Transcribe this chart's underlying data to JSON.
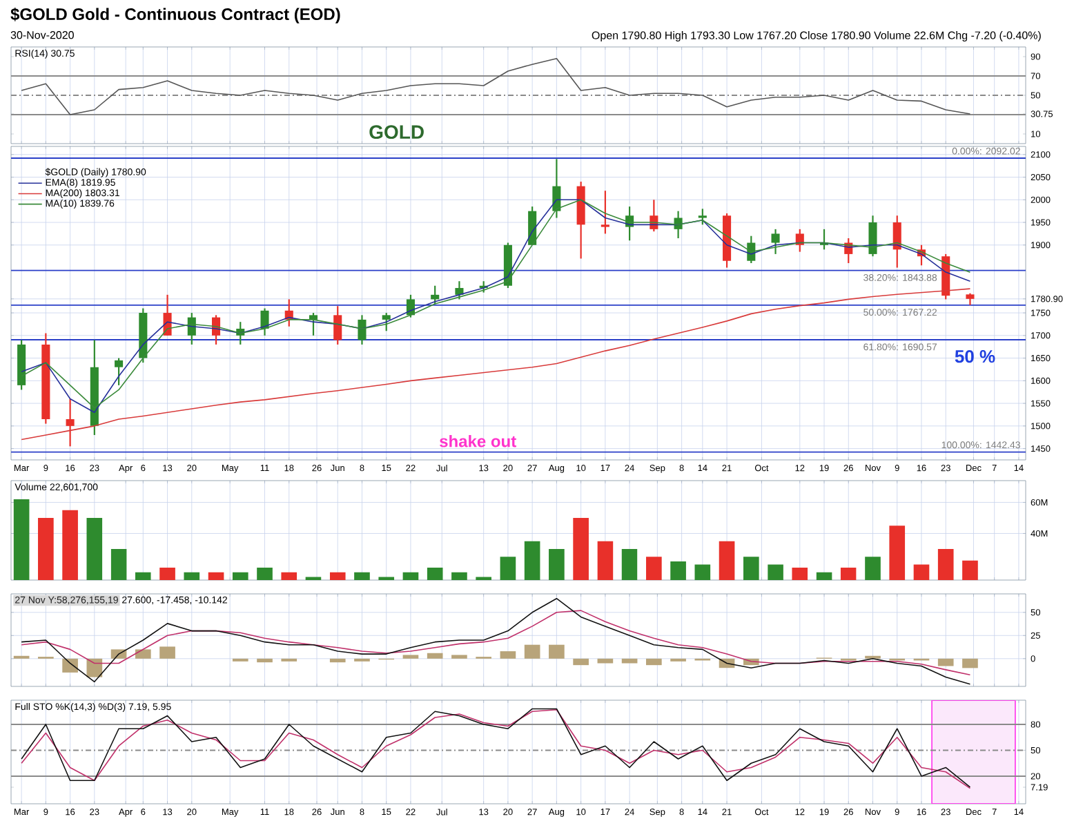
{
  "chart_data": [
    {
      "type": "other",
      "title": "$GOLD Gold - Continuous Contract (EOD)",
      "subtitle": "30-Nov-2020",
      "annotations": [
        "Open 1790.80  High 1793.30  Low 1767.20  Close 1780.90  Volume 22.6M  Chg -7.20 (-0.40%)"
      ]
    },
    {
      "type": "line",
      "title": "RSI(14) 30.75",
      "annotations": [
        "GOLD"
      ],
      "grid": "x",
      "tick_labels": "y",
      "xlim": [
        "2020-02-28",
        "2020-12-16"
      ],
      "ylim": [
        0,
        100
      ],
      "yticks": [
        10,
        {
          "value": 30.75,
          "label": "30.75"
        },
        50,
        70,
        90
      ],
      "ref_lines": [
        {
          "axis": "y",
          "value": 70,
          "color": "#8a8a8a"
        },
        {
          "axis": "y",
          "value": 50,
          "color": "#8a8a8a",
          "line_style": "dashed"
        },
        {
          "axis": "y",
          "value": 30,
          "color": "#8a8a8a"
        }
      ],
      "x": [
        "2020-03-02",
        "2020-03-09",
        "2020-03-16",
        "2020-03-23",
        "2020-03-30",
        "2020-04-06",
        "2020-04-13",
        "2020-04-20",
        "2020-04-27",
        "2020-05-04",
        "2020-05-11",
        "2020-05-18",
        "2020-05-25",
        "2020-06-01",
        "2020-06-08",
        "2020-06-15",
        "2020-06-22",
        "2020-06-29",
        "2020-07-06",
        "2020-07-13",
        "2020-07-20",
        "2020-07-27",
        "2020-08-03",
        "2020-08-10",
        "2020-08-17",
        "2020-08-24",
        "2020-08-31",
        "2020-09-07",
        "2020-09-14",
        "2020-09-21",
        "2020-09-28",
        "2020-10-05",
        "2020-10-12",
        "2020-10-19",
        "2020-10-26",
        "2020-11-02",
        "2020-11-09",
        "2020-11-16",
        "2020-11-23",
        "2020-11-30"
      ],
      "series": [
        {
          "color": "#555555",
          "values": [
            55,
            62,
            30,
            35,
            56,
            58,
            65,
            55,
            52,
            50,
            55,
            52,
            50,
            45,
            52,
            55,
            60,
            62,
            62,
            60,
            75,
            82,
            88,
            55,
            58,
            50,
            52,
            52,
            50,
            38,
            45,
            48,
            48,
            50,
            45,
            55,
            45,
            44,
            35,
            30.75
          ]
        }
      ]
    },
    {
      "type": "candlestick",
      "legend": "top left",
      "legend_title": "$GOLD (Daily) 1780.90",
      "grid": true,
      "xlim": [
        "2020-02-28",
        "2020-12-16"
      ],
      "ylim": [
        1425,
        2118
      ],
      "yticks": [
        1450,
        1500,
        1550,
        1600,
        1650,
        1700,
        1750,
        {
          "value": 1780.9,
          "label": "1780.90"
        },
        1900,
        1950,
        2000,
        2050,
        2100
      ],
      "xticks": [
        {
          "value": "2020-03-02",
          "label": "Mar"
        },
        {
          "value": "2020-03-09",
          "label": "9"
        },
        {
          "value": "2020-03-16",
          "label": "16"
        },
        {
          "value": "2020-03-23",
          "label": "23"
        },
        {
          "value": "2020-04-01",
          "label": "Apr"
        },
        {
          "value": "2020-04-06",
          "label": "6"
        },
        {
          "value": "2020-04-13",
          "label": "13"
        },
        {
          "value": "2020-04-20",
          "label": "20"
        },
        {
          "value": "2020-05-01",
          "label": "May"
        },
        {
          "value": "2020-05-11",
          "label": "11"
        },
        {
          "value": "2020-05-18",
          "label": "18"
        },
        {
          "value": "2020-05-26",
          "label": "26"
        },
        {
          "value": "2020-06-01",
          "label": "Jun"
        },
        {
          "value": "2020-06-08",
          "label": "8"
        },
        {
          "value": "2020-06-15",
          "label": "15"
        },
        {
          "value": "2020-06-22",
          "label": "22"
        },
        {
          "value": "2020-07-01",
          "label": "Jul"
        },
        {
          "value": "2020-07-13",
          "label": "13"
        },
        {
          "value": "2020-07-20",
          "label": "20"
        },
        {
          "value": "2020-07-27",
          "label": "27"
        },
        {
          "value": "2020-08-03",
          "label": "Aug"
        },
        {
          "value": "2020-08-10",
          "label": "10"
        },
        {
          "value": "2020-08-17",
          "label": "17"
        },
        {
          "value": "2020-08-24",
          "label": "24"
        },
        {
          "value": "2020-09-01",
          "label": "Sep"
        },
        {
          "value": "2020-09-08",
          "label": "8"
        },
        {
          "value": "2020-09-14",
          "label": "14"
        },
        {
          "value": "2020-09-21",
          "label": "21"
        },
        {
          "value": "2020-10-01",
          "label": "Oct"
        },
        {
          "value": "2020-10-12",
          "label": "12"
        },
        {
          "value": "2020-10-19",
          "label": "19"
        },
        {
          "value": "2020-10-26",
          "label": "26"
        },
        {
          "value": "2020-11-02",
          "label": "Nov"
        },
        {
          "value": "2020-11-09",
          "label": "9"
        },
        {
          "value": "2020-11-16",
          "label": "16"
        },
        {
          "value": "2020-11-23",
          "label": "23"
        },
        {
          "value": "2020-12-01",
          "label": "Dec"
        },
        {
          "value": "2020-12-07",
          "label": "7"
        },
        {
          "value": "2020-12-14",
          "label": "14"
        }
      ],
      "ref_lines": [
        {
          "axis": "y",
          "value": 2092.02,
          "label": "0.00%: 2092.02",
          "color": "#2a3fc8"
        },
        {
          "axis": "y",
          "value": 1843.88,
          "label": "38.20%: 1843.88",
          "color": "#2a3fc8"
        },
        {
          "axis": "y",
          "value": 1767.22,
          "label": "50.00%: 1767.22",
          "color": "#2a3fc8"
        },
        {
          "axis": "y",
          "value": 1690.57,
          "label": "61.80%: 1690.57",
          "color": "#2a3fc8"
        },
        {
          "axis": "y",
          "value": 1442.43,
          "label": "100.00%: 1442.43",
          "color": "#2a3fc8"
        }
      ],
      "annotations": [
        "shake out",
        "50 %"
      ],
      "x": [
        "2020-03-02",
        "2020-03-09",
        "2020-03-16",
        "2020-03-23",
        "2020-03-30",
        "2020-04-06",
        "2020-04-13",
        "2020-04-20",
        "2020-04-27",
        "2020-05-04",
        "2020-05-11",
        "2020-05-18",
        "2020-05-25",
        "2020-06-01",
        "2020-06-08",
        "2020-06-15",
        "2020-06-22",
        "2020-06-29",
        "2020-07-06",
        "2020-07-13",
        "2020-07-20",
        "2020-07-27",
        "2020-08-03",
        "2020-08-10",
        "2020-08-17",
        "2020-08-24",
        "2020-08-31",
        "2020-09-07",
        "2020-09-14",
        "2020-09-21",
        "2020-09-28",
        "2020-10-05",
        "2020-10-12",
        "2020-10-19",
        "2020-10-26",
        "2020-11-02",
        "2020-11-09",
        "2020-11-16",
        "2020-11-23",
        "2020-11-30"
      ],
      "ohlc": [
        [
          1590,
          1690,
          1580,
          1680
        ],
        [
          1680,
          1705,
          1505,
          1515
        ],
        [
          1515,
          1560,
          1455,
          1500
        ],
        [
          1500,
          1690,
          1480,
          1630
        ],
        [
          1630,
          1650,
          1590,
          1645
        ],
        [
          1650,
          1760,
          1640,
          1750
        ],
        [
          1750,
          1790,
          1700,
          1700
        ],
        [
          1700,
          1750,
          1680,
          1740
        ],
        [
          1740,
          1745,
          1680,
          1700
        ],
        [
          1700,
          1730,
          1680,
          1715
        ],
        [
          1715,
          1760,
          1700,
          1755
        ],
        [
          1755,
          1780,
          1720,
          1735
        ],
        [
          1735,
          1750,
          1700,
          1745
        ],
        [
          1745,
          1765,
          1680,
          1690
        ],
        [
          1690,
          1745,
          1680,
          1735
        ],
        [
          1735,
          1750,
          1710,
          1745
        ],
        [
          1745,
          1790,
          1740,
          1780
        ],
        [
          1780,
          1810,
          1770,
          1790
        ],
        [
          1790,
          1820,
          1780,
          1805
        ],
        [
          1805,
          1820,
          1795,
          1810
        ],
        [
          1810,
          1905,
          1805,
          1900
        ],
        [
          1900,
          1985,
          1900,
          1975
        ],
        [
          1975,
          2090,
          1960,
          2030
        ],
        [
          2030,
          2040,
          1870,
          1945
        ],
        [
          1945,
          2020,
          1925,
          1940
        ],
        [
          1940,
          1985,
          1910,
          1965
        ],
        [
          1965,
          2000,
          1930,
          1935
        ],
        [
          1935,
          1975,
          1915,
          1960
        ],
        [
          1960,
          1980,
          1945,
          1965
        ],
        [
          1965,
          1970,
          1850,
          1865
        ],
        [
          1865,
          1920,
          1860,
          1905
        ],
        [
          1905,
          1935,
          1880,
          1925
        ],
        [
          1925,
          1935,
          1885,
          1900
        ],
        [
          1900,
          1935,
          1890,
          1905
        ],
        [
          1905,
          1915,
          1860,
          1880
        ],
        [
          1880,
          1965,
          1875,
          1950
        ],
        [
          1950,
          1965,
          1850,
          1890
        ],
        [
          1890,
          1900,
          1855,
          1875
        ],
        [
          1875,
          1880,
          1780,
          1788
        ],
        [
          1790.8,
          1793.3,
          1767.2,
          1780.9
        ]
      ],
      "series": [
        {
          "type": "line",
          "name": "EMA(8) 1819.95",
          "color": "#26309a",
          "values": [
            1620,
            1640,
            1560,
            1530,
            1610,
            1680,
            1730,
            1720,
            1715,
            1705,
            1720,
            1740,
            1730,
            1725,
            1715,
            1730,
            1755,
            1775,
            1790,
            1805,
            1830,
            1930,
            2000,
            2000,
            1960,
            1945,
            1945,
            1945,
            1955,
            1900,
            1880,
            1900,
            1905,
            1905,
            1895,
            1900,
            1900,
            1880,
            1840,
            1819.95
          ]
        },
        {
          "type": "line",
          "name": "MA(200) 1803.31",
          "color": "#d83a3a",
          "values": [
            1470,
            1480,
            1490,
            1500,
            1515,
            1522,
            1530,
            1538,
            1546,
            1553,
            1558,
            1565,
            1572,
            1578,
            1585,
            1592,
            1600,
            1606,
            1612,
            1618,
            1624,
            1630,
            1638,
            1652,
            1666,
            1678,
            1692,
            1705,
            1718,
            1732,
            1748,
            1758,
            1766,
            1772,
            1780,
            1786,
            1791,
            1795,
            1799,
            1803.31
          ]
        },
        {
          "type": "line",
          "name": "MA(10) 1839.76",
          "color": "#3a8a3a",
          "values": [
            1610,
            1640,
            1590,
            1540,
            1580,
            1650,
            1715,
            1725,
            1720,
            1705,
            1715,
            1735,
            1735,
            1725,
            1715,
            1725,
            1745,
            1770,
            1785,
            1800,
            1820,
            1900,
            1980,
            2000,
            1970,
            1950,
            1950,
            1945,
            1955,
            1920,
            1885,
            1895,
            1905,
            1905,
            1900,
            1895,
            1905,
            1885,
            1860,
            1839.76
          ]
        }
      ]
    },
    {
      "type": "bar",
      "title": "Volume 22,601,700",
      "grid": true,
      "tick_labels": "y",
      "xlim": [
        "2020-02-28",
        "2020-12-16"
      ],
      "ylim": [
        10,
        74
      ],
      "yticks": [
        {
          "value": 40,
          "label": "40M"
        },
        {
          "value": 60,
          "label": "60M"
        }
      ],
      "x": [
        "2020-03-02",
        "2020-03-09",
        "2020-03-16",
        "2020-03-23",
        "2020-03-30",
        "2020-04-06",
        "2020-04-13",
        "2020-04-20",
        "2020-04-27",
        "2020-05-04",
        "2020-05-11",
        "2020-05-18",
        "2020-05-25",
        "2020-06-01",
        "2020-06-08",
        "2020-06-15",
        "2020-06-22",
        "2020-06-29",
        "2020-07-06",
        "2020-07-13",
        "2020-07-20",
        "2020-07-27",
        "2020-08-03",
        "2020-08-10",
        "2020-08-17",
        "2020-08-24",
        "2020-08-31",
        "2020-09-07",
        "2020-09-14",
        "2020-09-21",
        "2020-09-28",
        "2020-10-05",
        "2020-10-12",
        "2020-10-19",
        "2020-10-26",
        "2020-11-02",
        "2020-11-09",
        "2020-11-16",
        "2020-11-23",
        "2020-11-30"
      ],
      "values": [
        62,
        50,
        55,
        50,
        30,
        15,
        18,
        15,
        15,
        15,
        18,
        15,
        12,
        15,
        15,
        12,
        15,
        18,
        15,
        12,
        25,
        35,
        30,
        50,
        35,
        30,
        25,
        22,
        20,
        35,
        25,
        20,
        18,
        15,
        18,
        25,
        45,
        20,
        30,
        22.6
      ],
      "colors": [
        "#2e8b2e",
        "#e8302a",
        "#e8302a",
        "#2e8b2e",
        "#2e8b2e",
        "#2e8b2e",
        "#e8302a",
        "#2e8b2e",
        "#e8302a",
        "#2e8b2e",
        "#2e8b2e",
        "#e8302a",
        "#2e8b2e",
        "#e8302a",
        "#2e8b2e",
        "#2e8b2e",
        "#2e8b2e",
        "#2e8b2e",
        "#2e8b2e",
        "#2e8b2e",
        "#2e8b2e",
        "#2e8b2e",
        "#2e8b2e",
        "#e8302a",
        "#e8302a",
        "#2e8b2e",
        "#e8302a",
        "#2e8b2e",
        "#2e8b2e",
        "#e8302a",
        "#2e8b2e",
        "#2e8b2e",
        "#e8302a",
        "#2e8b2e",
        "#e8302a",
        "#2e8b2e",
        "#e8302a",
        "#e8302a",
        "#e8302a",
        "#e8302a"
      ]
    },
    {
      "type": "line",
      "title": "27.600, -17.458, -10.142",
      "annotations": [
        "27 Nov Y:58,276,155,19"
      ],
      "grid": true,
      "tick_labels": "y",
      "xlim": [
        "2020-02-28",
        "2020-12-16"
      ],
      "ylim": [
        -30,
        70
      ],
      "yticks": [
        0,
        25,
        50
      ],
      "x": [
        "2020-03-02",
        "2020-03-09",
        "2020-03-16",
        "2020-03-23",
        "2020-03-30",
        "2020-04-06",
        "2020-04-13",
        "2020-04-20",
        "2020-04-27",
        "2020-05-04",
        "2020-05-11",
        "2020-05-18",
        "2020-05-25",
        "2020-06-01",
        "2020-06-08",
        "2020-06-15",
        "2020-06-22",
        "2020-06-29",
        "2020-07-06",
        "2020-07-13",
        "2020-07-20",
        "2020-07-27",
        "2020-08-03",
        "2020-08-10",
        "2020-08-17",
        "2020-08-24",
        "2020-08-31",
        "2020-09-07",
        "2020-09-14",
        "2020-09-21",
        "2020-09-28",
        "2020-10-05",
        "2020-10-12",
        "2020-10-19",
        "2020-10-26",
        "2020-11-02",
        "2020-11-09",
        "2020-11-16",
        "2020-11-23",
        "2020-11-30"
      ],
      "series": [
        {
          "type": "bar",
          "color": "#b8a47a",
          "values": [
            3,
            2,
            -15,
            -20,
            10,
            10,
            13,
            0,
            0,
            -3,
            -4,
            -3,
            0,
            -4,
            -3,
            -1,
            4,
            6,
            4,
            2,
            8,
            15,
            15,
            -7,
            -5,
            -5,
            -7,
            -3,
            -2,
            -10,
            -7,
            0,
            0,
            1,
            -2,
            3,
            -2,
            -2,
            -8,
            -10.142
          ]
        },
        {
          "type": "line",
          "color": "#c0306a",
          "values": [
            15,
            18,
            10,
            -5,
            -5,
            10,
            25,
            30,
            30,
            28,
            22,
            18,
            15,
            12,
            8,
            6,
            8,
            12,
            16,
            18,
            22,
            35,
            50,
            52,
            40,
            30,
            22,
            15,
            12,
            5,
            -3,
            -5,
            -5,
            -3,
            -3,
            -3,
            -3,
            -6,
            -12,
            -17.458
          ]
        },
        {
          "type": "line",
          "color": "#111111",
          "values": [
            18,
            20,
            -5,
            -25,
            5,
            20,
            38,
            30,
            30,
            25,
            18,
            15,
            15,
            8,
            5,
            5,
            12,
            18,
            20,
            20,
            30,
            50,
            65,
            45,
            35,
            25,
            15,
            12,
            10,
            -5,
            -10,
            -5,
            -5,
            -2,
            -5,
            0,
            -5,
            -8,
            -20,
            -27.6
          ]
        }
      ]
    },
    {
      "type": "line",
      "title": "Full STO %K(14,3) %D(3) 7.19, 5.95",
      "grid": "x",
      "xlim": [
        "2020-02-28",
        "2020-12-16"
      ],
      "ylim": [
        -12,
        108
      ],
      "yticks": [
        {
          "value": 7.19,
          "label": "7.19"
        },
        20,
        50,
        80
      ],
      "xticks": [
        {
          "value": "2020-03-02",
          "label": "Mar"
        },
        {
          "value": "2020-03-09",
          "label": "9"
        },
        {
          "value": "2020-03-16",
          "label": "16"
        },
        {
          "value": "2020-03-23",
          "label": "23"
        },
        {
          "value": "2020-04-01",
          "label": "Apr"
        },
        {
          "value": "2020-04-06",
          "label": "6"
        },
        {
          "value": "2020-04-13",
          "label": "13"
        },
        {
          "value": "2020-04-20",
          "label": "20"
        },
        {
          "value": "2020-05-01",
          "label": "May"
        },
        {
          "value": "2020-05-11",
          "label": "11"
        },
        {
          "value": "2020-05-18",
          "label": "18"
        },
        {
          "value": "2020-05-26",
          "label": "26"
        },
        {
          "value": "2020-06-01",
          "label": "Jun"
        },
        {
          "value": "2020-06-08",
          "label": "8"
        },
        {
          "value": "2020-06-15",
          "label": "15"
        },
        {
          "value": "2020-06-22",
          "label": "22"
        },
        {
          "value": "2020-07-01",
          "label": "Jul"
        },
        {
          "value": "2020-07-13",
          "label": "13"
        },
        {
          "value": "2020-07-20",
          "label": "20"
        },
        {
          "value": "2020-07-27",
          "label": "27"
        },
        {
          "value": "2020-08-03",
          "label": "Aug"
        },
        {
          "value": "2020-08-10",
          "label": "10"
        },
        {
          "value": "2020-08-17",
          "label": "17"
        },
        {
          "value": "2020-08-24",
          "label": "24"
        },
        {
          "value": "2020-09-01",
          "label": "Sep"
        },
        {
          "value": "2020-09-08",
          "label": "8"
        },
        {
          "value": "2020-09-14",
          "label": "14"
        },
        {
          "value": "2020-09-21",
          "label": "21"
        },
        {
          "value": "2020-10-01",
          "label": "Oct"
        },
        {
          "value": "2020-10-12",
          "label": "12"
        },
        {
          "value": "2020-10-19",
          "label": "19"
        },
        {
          "value": "2020-10-26",
          "label": "26"
        },
        {
          "value": "2020-11-02",
          "label": "Nov"
        },
        {
          "value": "2020-11-09",
          "label": "9"
        },
        {
          "value": "2020-11-16",
          "label": "16"
        },
        {
          "value": "2020-11-23",
          "label": "23"
        },
        {
          "value": "2020-12-01",
          "label": "Dec"
        },
        {
          "value": "2020-12-07",
          "label": "7"
        },
        {
          "value": "2020-12-14",
          "label": "14"
        }
      ],
      "ref_lines": [
        {
          "axis": "y",
          "value": 80,
          "color": "#8a8a8a"
        },
        {
          "axis": "y",
          "value": 50,
          "color": "#8a8a8a",
          "line_style": "dashed"
        },
        {
          "axis": "y",
          "value": 20,
          "color": "#8a8a8a"
        }
      ],
      "bands": [
        {
          "axis": "x",
          "from": "2020-11-19",
          "to": "2020-12-13",
          "color": "#fbe8fb"
        }
      ],
      "x": [
        "2020-03-02",
        "2020-03-09",
        "2020-03-16",
        "2020-03-23",
        "2020-03-30",
        "2020-04-06",
        "2020-04-13",
        "2020-04-20",
        "2020-04-27",
        "2020-05-04",
        "2020-05-11",
        "2020-05-18",
        "2020-05-25",
        "2020-06-01",
        "2020-06-08",
        "2020-06-15",
        "2020-06-22",
        "2020-06-29",
        "2020-07-06",
        "2020-07-13",
        "2020-07-20",
        "2020-07-27",
        "2020-08-03",
        "2020-08-10",
        "2020-08-17",
        "2020-08-24",
        "2020-08-31",
        "2020-09-07",
        "2020-09-14",
        "2020-09-21",
        "2020-09-28",
        "2020-10-05",
        "2020-10-12",
        "2020-10-19",
        "2020-10-26",
        "2020-11-02",
        "2020-11-09",
        "2020-11-16",
        "2020-11-23",
        "2020-11-30"
      ],
      "series": [
        {
          "type": "line",
          "color": "#c0306a",
          "values": [
            35,
            70,
            30,
            15,
            55,
            78,
            85,
            70,
            62,
            38,
            38,
            70,
            62,
            45,
            30,
            55,
            68,
            88,
            92,
            82,
            78,
            95,
            97,
            55,
            50,
            35,
            50,
            45,
            50,
            25,
            30,
            42,
            65,
            62,
            58,
            35,
            65,
            30,
            25,
            5.95
          ]
        },
        {
          "type": "line",
          "color": "#111111",
          "values": [
            40,
            80,
            15,
            15,
            75,
            75,
            90,
            60,
            65,
            30,
            40,
            80,
            55,
            40,
            25,
            65,
            70,
            95,
            90,
            80,
            75,
            98,
            98,
            45,
            55,
            30,
            60,
            40,
            55,
            15,
            35,
            45,
            75,
            60,
            55,
            25,
            75,
            20,
            30,
            7.19
          ]
        }
      ]
    }
  ]
}
